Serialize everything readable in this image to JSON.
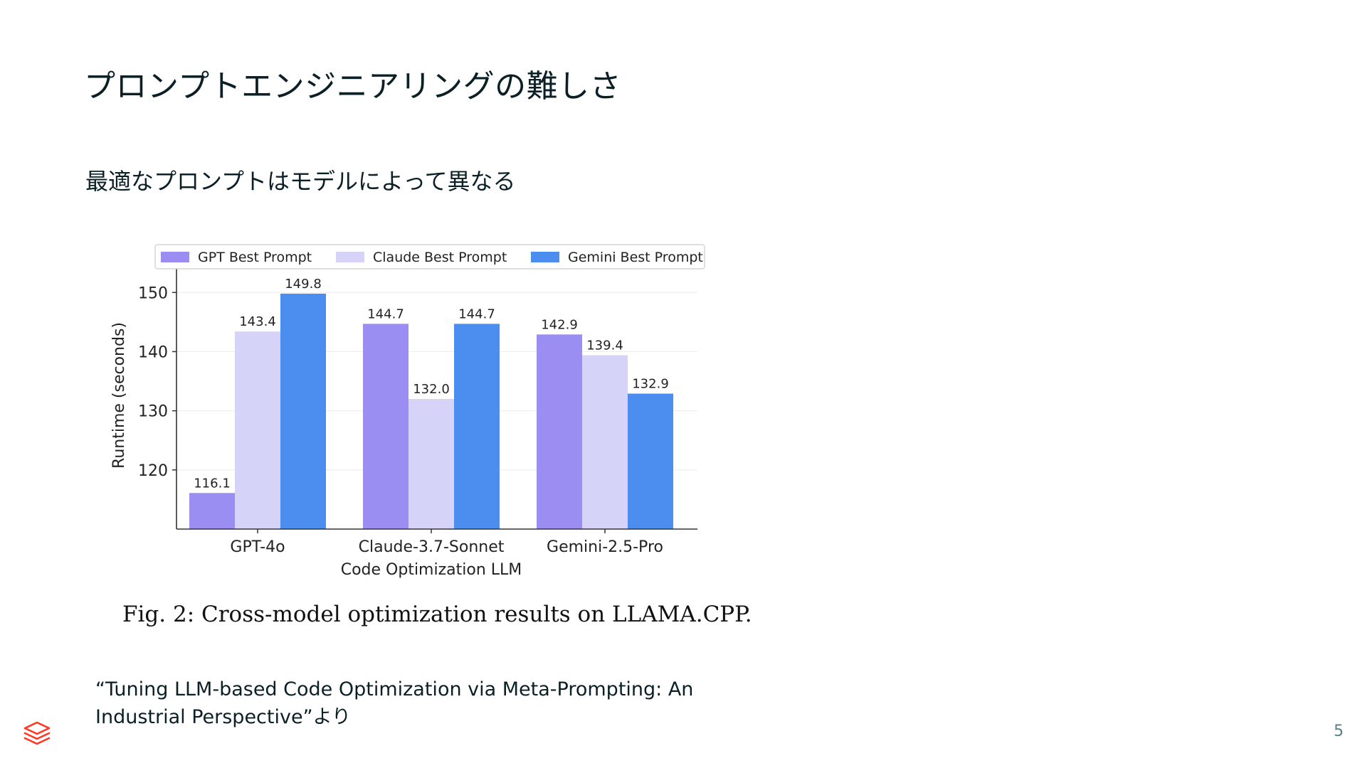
{
  "slide": {
    "title": "プロンプトエンジニアリングの難しさ",
    "subtitle": "最適なプロンプトはモデルによって異なる",
    "source_line1": "“Tuning LLM-based Code Optimization via Meta-Prompting: An",
    "source_line2": "Industrial Perspective”より",
    "page_number": "5"
  },
  "figure": {
    "caption": "Fig. 2: Cross-model optimization results on LLAMA.CPP."
  },
  "colors": {
    "brand": "#ff3621",
    "gpt": "#9b8ef3",
    "claude": "#d6d3f8",
    "gemini": "#4b8ef0"
  },
  "chart_data": {
    "type": "bar",
    "categories": [
      "GPT-4o",
      "Claude-3.7-Sonnet",
      "Gemini-2.5-Pro"
    ],
    "series": [
      {
        "name": "GPT Best Prompt",
        "values": [
          116.1,
          144.7,
          142.9
        ],
        "color": "#9b8ef3"
      },
      {
        "name": "Claude Best Prompt",
        "values": [
          143.4,
          132.0,
          139.4
        ],
        "color": "#d6d3f8"
      },
      {
        "name": "Gemini Best Prompt",
        "values": [
          149.8,
          144.7,
          132.9
        ],
        "color": "#4b8ef0"
      }
    ],
    "xlabel": "Code Optimization LLM",
    "ylabel": "Runtime (seconds)",
    "ylim": [
      110,
      152.8
    ],
    "yticks": [
      120,
      130,
      140,
      150
    ],
    "grid": true,
    "legend": "top"
  }
}
